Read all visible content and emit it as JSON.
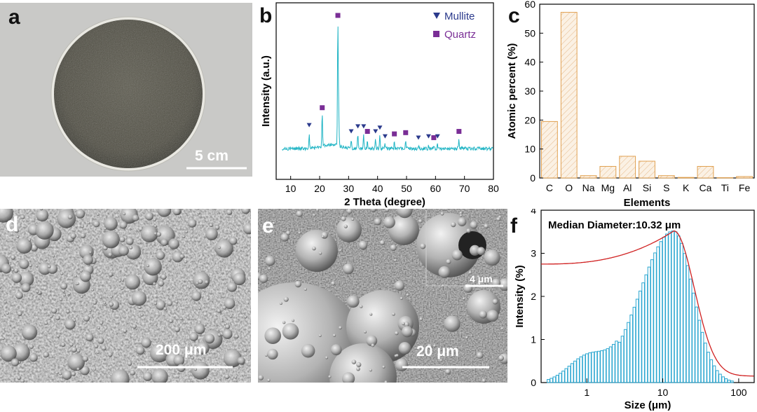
{
  "panels": {
    "a": {
      "label": "a",
      "scale_bar": "5 cm"
    },
    "b": {
      "label": "b"
    },
    "c": {
      "label": "c"
    },
    "d": {
      "label": "d",
      "scale_bar": "200 μm"
    },
    "e": {
      "label": "e",
      "scale_bar_main": "20 μm",
      "scale_bar_inset": "4 μm"
    },
    "f": {
      "label": "f",
      "annotation": "Median Diameter:10.32 μm"
    }
  },
  "colors": {
    "xrd_line": "#1fb4c4",
    "mullite": "#2b3a8c",
    "quartz": "#7a2e96",
    "bar_stroke": "#e0a050",
    "hist": "#2aa6d0",
    "fit": "#d02020"
  },
  "chart_data": [
    {
      "type": "line",
      "panel": "b",
      "xlabel": "2 Theta (degree)",
      "ylabel": "Intensity (a.u.)",
      "xlim": [
        5,
        80
      ],
      "xticks": [
        10,
        20,
        30,
        40,
        50,
        60,
        70,
        80
      ],
      "legend": [
        {
          "name": "Mullite",
          "marker": "triangle-down"
        },
        {
          "name": "Quartz",
          "marker": "square"
        }
      ],
      "legend_position": "top-right",
      "peaks": [
        {
          "x": 16.4,
          "y": 0.12,
          "phase": "Mullite"
        },
        {
          "x": 20.9,
          "y": 0.26,
          "phase": "Quartz"
        },
        {
          "x": 26.3,
          "y": 1.0,
          "phase": "Quartz"
        },
        {
          "x": 26.6,
          "y": 0.24,
          "phase": "Quartz"
        },
        {
          "x": 30.9,
          "y": 0.07,
          "phase": "Mullite"
        },
        {
          "x": 33.2,
          "y": 0.11,
          "phase": "Mullite"
        },
        {
          "x": 35.2,
          "y": 0.11,
          "phase": "Mullite"
        },
        {
          "x": 36.5,
          "y": 0.07,
          "phase": "Quartz"
        },
        {
          "x": 39.3,
          "y": 0.07,
          "phase": "Mullite"
        },
        {
          "x": 40.8,
          "y": 0.1,
          "phase": "Mullite"
        },
        {
          "x": 42.6,
          "y": 0.03,
          "phase": "Mullite"
        },
        {
          "x": 45.8,
          "y": 0.05,
          "phase": "Quartz"
        },
        {
          "x": 49.7,
          "y": 0.06,
          "phase": "Quartz"
        },
        {
          "x": 54.1,
          "y": 0.02,
          "phase": "Mullite"
        },
        {
          "x": 57.6,
          "y": 0.03,
          "phase": "Mullite"
        },
        {
          "x": 59.4,
          "y": 0.02,
          "phase": "Quartz"
        },
        {
          "x": 60.7,
          "y": 0.03,
          "phase": "Mullite"
        },
        {
          "x": 68.1,
          "y": 0.07,
          "phase": "Quartz"
        }
      ],
      "grid": false
    },
    {
      "type": "bar",
      "panel": "c",
      "xlabel": "Elements",
      "ylabel": "Atomic percent (%)",
      "ylim": [
        0,
        60
      ],
      "yticks": [
        0,
        10,
        20,
        30,
        40,
        50,
        60
      ],
      "categories": [
        "C",
        "O",
        "Na",
        "Mg",
        "Al",
        "Si",
        "S",
        "K",
        "Ca",
        "Ti",
        "Fe"
      ],
      "values": [
        19.5,
        57.2,
        0.8,
        4.0,
        7.5,
        5.8,
        0.8,
        0.2,
        4.0,
        0.1,
        0.5
      ],
      "grid": false
    },
    {
      "type": "bar",
      "panel": "f",
      "xlabel": "Size (μm)",
      "ylabel": "Intensity (%)",
      "xscale": "log",
      "xlim": [
        0.25,
        160
      ],
      "ylim": [
        0,
        4
      ],
      "yticks": [
        0,
        1,
        2,
        3,
        4
      ],
      "xticks": [
        1,
        10,
        100
      ],
      "median_um": 10.32,
      "peak_size_um": 14,
      "peak_intensity": 3.52,
      "series": [
        {
          "values_note": "",
          "kind": "histogram"
        },
        {
          "kind": "cumulative-fit"
        }
      ],
      "grid": false
    }
  ]
}
